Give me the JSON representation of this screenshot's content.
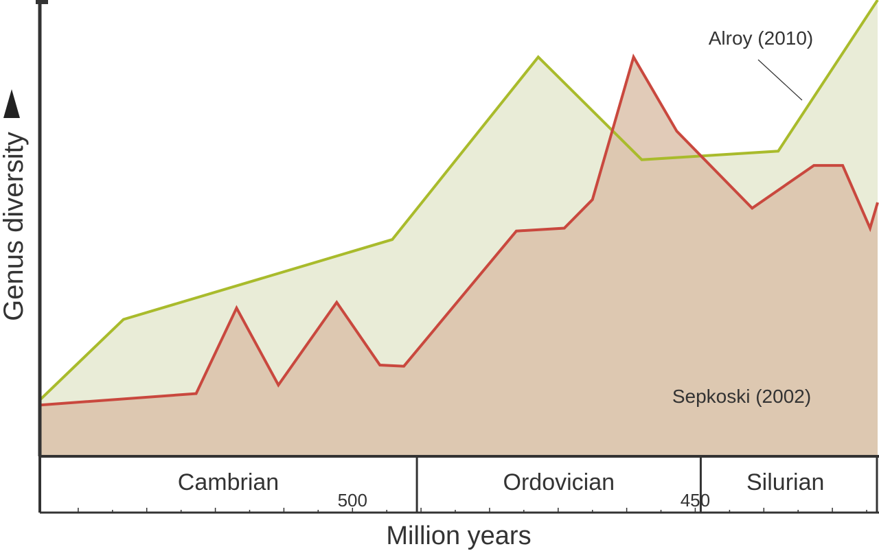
{
  "chart_data": {
    "type": "area",
    "xlabel": "Million years",
    "ylabel": "Genus diversity",
    "x_ticks_labeled": [
      {
        "value": 500,
        "label": "500"
      },
      {
        "value": 450,
        "label": "450"
      }
    ],
    "periods": [
      {
        "name": "Cambrian",
        "start": 545.6,
        "end": 490.6
      },
      {
        "name": "Ordovician",
        "start": 490.6,
        "end": 449.2
      },
      {
        "name": "Silurian",
        "start": 449.2,
        "end": 424.5
      }
    ],
    "series": [
      {
        "name": "Alroy (2010)",
        "color": "#a9bb2c",
        "fill": "#e9ecd7",
        "points": [
          {
            "x": 545.5,
            "y": 10
          },
          {
            "x": 533.4,
            "y": 24
          },
          {
            "x": 494.2,
            "y": 38
          },
          {
            "x": 472.9,
            "y": 70
          },
          {
            "x": 457.8,
            "y": 52
          },
          {
            "x": 437.9,
            "y": 53.5
          },
          {
            "x": 423.4,
            "y": 80
          }
        ]
      },
      {
        "name": "Sepkoski (2002)",
        "color": "#c9483e",
        "fill": "#dbbfa8",
        "points": [
          {
            "x": 545.5,
            "y": 9
          },
          {
            "x": 522.8,
            "y": 11
          },
          {
            "x": 516.9,
            "y": 26
          },
          {
            "x": 510.8,
            "y": 12.5
          },
          {
            "x": 502.3,
            "y": 27
          },
          {
            "x": 496.0,
            "y": 16
          },
          {
            "x": 492.5,
            "y": 15.8
          },
          {
            "x": 476.1,
            "y": 39.5
          },
          {
            "x": 469.1,
            "y": 40
          },
          {
            "x": 465.0,
            "y": 45
          },
          {
            "x": 459.0,
            "y": 70
          },
          {
            "x": 452.7,
            "y": 57
          },
          {
            "x": 441.7,
            "y": 43.5
          },
          {
            "x": 432.7,
            "y": 51
          },
          {
            "x": 428.5,
            "y": 51
          },
          {
            "x": 424.5,
            "y": 40
          },
          {
            "x": 423.4,
            "y": 44.5
          }
        ]
      }
    ],
    "annotations": [
      {
        "text": "Alroy (2010)",
        "series": "Alroy (2010)"
      },
      {
        "text": "Sepkoski (2002)",
        "series": "Sepkoski (2002)"
      }
    ],
    "x_range": [
      545.6,
      423.4
    ],
    "y_range": [
      0,
      80
    ],
    "grid": false,
    "legend": "none"
  }
}
